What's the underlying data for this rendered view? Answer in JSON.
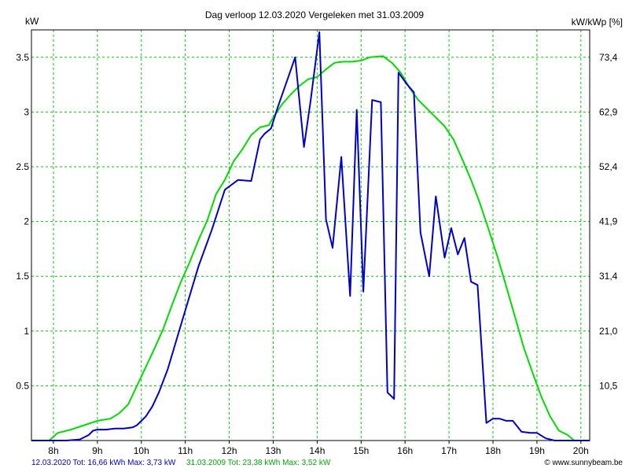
{
  "chart_data": {
    "type": "line",
    "title": "Dag  verloop 12.03.2020   Vergeleken met 31.03.2009",
    "ylabel_left": "kW",
    "ylabel_right": "kW/kWp [%]",
    "x_ticks": [
      "8h",
      "9h",
      "10h",
      "11h",
      "12h",
      "13h",
      "14h",
      "15h",
      "16h",
      "17h",
      "18h",
      "19h",
      "20h"
    ],
    "y_ticks_left": [
      "0.5",
      "1",
      "1.5",
      "2",
      "2.5",
      "3",
      "3.5"
    ],
    "y_ticks_right": [
      "10,5",
      "21,0",
      "31,4",
      "41,9",
      "52,4",
      "62,9",
      "73,4"
    ],
    "xlim": [
      7.5,
      20.2
    ],
    "ylim": [
      0,
      3.75
    ],
    "grid": true,
    "series": [
      {
        "name": "12.03.2020",
        "color": "#0000cc",
        "x": [
          7.5,
          8.3,
          8.6,
          8.8,
          8.9,
          9.0,
          9.2,
          9.4,
          9.6,
          9.8,
          9.9,
          10.1,
          10.25,
          10.4,
          10.6,
          10.8,
          11.0,
          11.3,
          11.6,
          11.9,
          12.2,
          12.5,
          12.7,
          12.8,
          12.95,
          13.1,
          13.3,
          13.5,
          13.7,
          13.85,
          14.05,
          14.2,
          14.35,
          14.55,
          14.75,
          14.9,
          15.05,
          15.25,
          15.45,
          15.6,
          15.75,
          15.85,
          16.05,
          16.2,
          16.35,
          16.55,
          16.7,
          16.9,
          17.05,
          17.2,
          17.35,
          17.5,
          17.65,
          17.85,
          18.0,
          18.15,
          18.3,
          18.45,
          18.65,
          18.85,
          19.0,
          19.2,
          19.4,
          19.6,
          19.75,
          20.2
        ],
        "y": [
          0.0,
          0.0,
          0.01,
          0.05,
          0.09,
          0.1,
          0.1,
          0.11,
          0.11,
          0.12,
          0.14,
          0.22,
          0.31,
          0.44,
          0.65,
          0.92,
          1.19,
          1.59,
          1.92,
          2.29,
          2.38,
          2.37,
          2.75,
          2.8,
          2.85,
          3.04,
          3.27,
          3.5,
          2.68,
          3.1,
          3.73,
          2.02,
          1.76,
          2.59,
          1.32,
          3.02,
          1.36,
          3.11,
          3.09,
          0.44,
          0.38,
          3.36,
          3.25,
          3.18,
          1.9,
          1.5,
          2.23,
          1.67,
          1.94,
          1.7,
          1.85,
          1.45,
          1.42,
          0.16,
          0.2,
          0.2,
          0.18,
          0.18,
          0.08,
          0.07,
          0.07,
          0.02,
          0.0,
          0.0,
          0.0,
          0.0
        ]
      },
      {
        "name": "31.03.2009",
        "color": "#00dd00",
        "x": [
          7.5,
          7.9,
          8.1,
          8.4,
          8.7,
          9.0,
          9.3,
          9.5,
          9.7,
          9.9,
          10.1,
          10.3,
          10.5,
          10.7,
          10.9,
          11.1,
          11.3,
          11.5,
          11.7,
          11.9,
          12.1,
          12.3,
          12.5,
          12.7,
          12.8,
          12.9,
          13.0,
          13.2,
          13.4,
          13.6,
          13.8,
          14.0,
          14.2,
          14.4,
          14.6,
          14.8,
          15.0,
          15.2,
          15.5,
          15.7,
          15.9,
          16.1,
          16.3,
          16.5,
          16.7,
          16.9,
          17.1,
          17.3,
          17.5,
          17.7,
          17.9,
          18.1,
          18.3,
          18.5,
          18.7,
          18.9,
          19.1,
          19.3,
          19.5,
          19.7,
          19.85,
          20.0,
          20.2
        ],
        "y": [
          0.0,
          0.0,
          0.07,
          0.1,
          0.14,
          0.18,
          0.2,
          0.25,
          0.33,
          0.5,
          0.67,
          0.84,
          1.02,
          1.24,
          1.45,
          1.63,
          1.83,
          2.01,
          2.25,
          2.38,
          2.55,
          2.66,
          2.79,
          2.86,
          2.87,
          2.88,
          2.95,
          3.07,
          3.16,
          3.24,
          3.3,
          3.32,
          3.39,
          3.45,
          3.46,
          3.46,
          3.47,
          3.5,
          3.51,
          3.45,
          3.36,
          3.22,
          3.11,
          3.03,
          2.95,
          2.87,
          2.75,
          2.57,
          2.38,
          2.17,
          1.93,
          1.68,
          1.41,
          1.13,
          0.85,
          0.62,
          0.4,
          0.22,
          0.09,
          0.05,
          0.0,
          0.0,
          0.0
        ]
      }
    ]
  },
  "footer": {
    "series1": "12.03.2020 Tot: 16,66 kWh Max: 3,73 kW",
    "series2": "31.03.2009 Tot: 23,38 kWh Max: 3,52 kW",
    "credit": "© www.sunnybeam.be"
  }
}
